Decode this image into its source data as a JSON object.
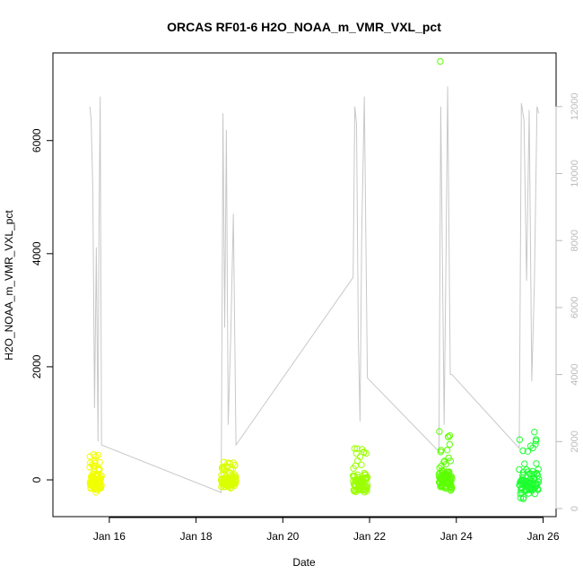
{
  "chart_data": {
    "type": "scatter",
    "title": "ORCAS RF01-6 H2O_NOAA_m_VMR_VXL_pct",
    "xlabel": "Date",
    "ylabel": "H2O_NOAA_m_VMR_VXL_pct",
    "x_ticks": [
      "Jan 16",
      "Jan 18",
      "Jan 20",
      "Jan 22",
      "Jan 24",
      "Jan 26"
    ],
    "x_tick_days": [
      16,
      18,
      20,
      22,
      24,
      26
    ],
    "xlim_days": [
      14.7,
      26.3
    ],
    "y_ticks": [
      "0",
      "2000",
      "4000",
      "6000"
    ],
    "ylim": [
      -650,
      7550
    ],
    "y2_ticks": [
      "0",
      "2000",
      "4000",
      "6000",
      "8000",
      "10000",
      "12000"
    ],
    "y2lim": [
      -240,
      13600
    ],
    "y2_color": "#bbbbbb",
    "grid": false,
    "flights": [
      {
        "start_day": 15.55,
        "end_day": 15.82,
        "color": "#f2ff00",
        "low": -250,
        "high": 150,
        "spike": 450
      },
      {
        "start_day": 18.58,
        "end_day": 18.92,
        "color": "#d9ff00",
        "low": -150,
        "high": 120,
        "spike": 350
      },
      {
        "start_day": 21.62,
        "end_day": 21.95,
        "color": "#9cff00",
        "low": -250,
        "high": 150,
        "spike": 700
      },
      {
        "start_day": 23.6,
        "end_day": 23.9,
        "color": "#5cff00",
        "low": -200,
        "high": 200,
        "spike": 7400
      },
      {
        "start_day": 25.45,
        "end_day": 25.9,
        "color": "#1dff30",
        "low": -350,
        "high": 250,
        "spike": 850
      }
    ],
    "secondary_series": {
      "color": "#c8c8c8",
      "points": [
        [
          15.55,
          12000
        ],
        [
          15.58,
          11600
        ],
        [
          15.62,
          9500
        ],
        [
          15.66,
          3000
        ],
        [
          15.7,
          7800
        ],
        [
          15.74,
          2000
        ],
        [
          15.76,
          8100
        ],
        [
          15.79,
          12300
        ],
        [
          15.82,
          1900
        ],
        [
          18.58,
          480
        ],
        [
          18.62,
          11800
        ],
        [
          18.66,
          5400
        ],
        [
          18.7,
          11300
        ],
        [
          18.74,
          2500
        ],
        [
          18.8,
          5200
        ],
        [
          18.86,
          8800
        ],
        [
          18.92,
          1900
        ],
        [
          21.62,
          6900
        ],
        [
          21.66,
          12000
        ],
        [
          21.7,
          11500
        ],
        [
          21.74,
          5100
        ],
        [
          21.78,
          2600
        ],
        [
          21.82,
          8200
        ],
        [
          21.88,
          12300
        ],
        [
          21.95,
          3900
        ],
        [
          23.6,
          1700
        ],
        [
          23.64,
          12000
        ],
        [
          23.68,
          7300
        ],
        [
          23.72,
          2500
        ],
        [
          23.76,
          7400
        ],
        [
          23.8,
          12600
        ],
        [
          23.86,
          4000
        ],
        [
          23.9,
          4000
        ],
        [
          25.45,
          1800
        ],
        [
          25.5,
          12100
        ],
        [
          25.56,
          11600
        ],
        [
          25.62,
          6800
        ],
        [
          25.68,
          11900
        ],
        [
          25.74,
          3800
        ],
        [
          25.8,
          6700
        ],
        [
          25.86,
          12000
        ],
        [
          25.9,
          11800
        ]
      ]
    }
  }
}
